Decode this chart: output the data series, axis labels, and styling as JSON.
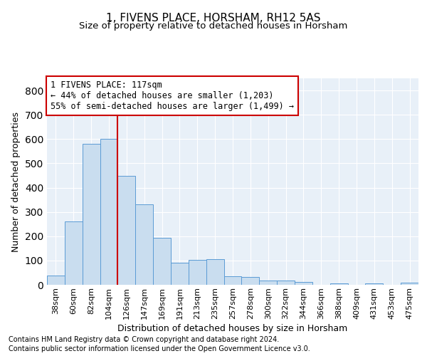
{
  "title": "1, FIVENS PLACE, HORSHAM, RH12 5AS",
  "subtitle": "Size of property relative to detached houses in Horsham",
  "xlabel": "Distribution of detached houses by size in Horsham",
  "ylabel": "Number of detached properties",
  "footer1": "Contains HM Land Registry data © Crown copyright and database right 2024.",
  "footer2": "Contains public sector information licensed under the Open Government Licence v3.0.",
  "bar_labels": [
    "38sqm",
    "60sqm",
    "82sqm",
    "104sqm",
    "126sqm",
    "147sqm",
    "169sqm",
    "191sqm",
    "213sqm",
    "235sqm",
    "257sqm",
    "278sqm",
    "300sqm",
    "322sqm",
    "344sqm",
    "366sqm",
    "388sqm",
    "409sqm",
    "431sqm",
    "453sqm",
    "475sqm"
  ],
  "bar_values": [
    38,
    262,
    580,
    600,
    448,
    330,
    193,
    90,
    102,
    105,
    36,
    32,
    17,
    17,
    12,
    0,
    7,
    0,
    7,
    0,
    8
  ],
  "bar_color": "#c9ddef",
  "bar_edge_color": "#5b9bd5",
  "vline_index": 4,
  "vline_color": "#cc0000",
  "annotation_line1": "1 FIVENS PLACE: 117sqm",
  "annotation_line2": "← 44% of detached houses are smaller (1,203)",
  "annotation_line3": "55% of semi-detached houses are larger (1,499) →",
  "annotation_box_color": "#cc0000",
  "ylim": [
    0,
    850
  ],
  "yticks": [
    0,
    100,
    200,
    300,
    400,
    500,
    600,
    700,
    800
  ],
  "background_color": "#e8f0f8",
  "grid_color": "#ffffff",
  "title_fontsize": 11,
  "axis_label_fontsize": 9,
  "tick_fontsize": 8,
  "bar_width": 1.0
}
